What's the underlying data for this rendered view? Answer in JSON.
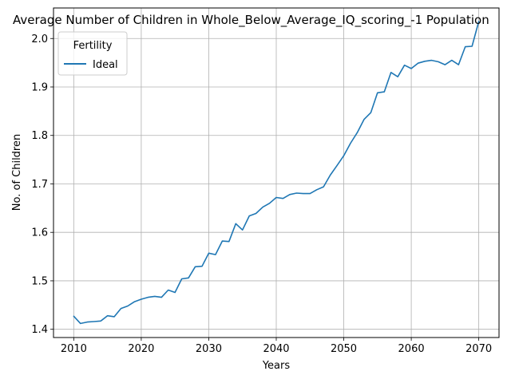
{
  "chart_data": {
    "type": "line",
    "title": "Average Number of Children in Whole_Below_Average_IQ_scoring_-1 Population",
    "xlabel": "Years",
    "ylabel": "No. of Children",
    "xlim": [
      2007,
      2073
    ],
    "ylim": [
      1.383,
      2.063
    ],
    "xticks": [
      2010,
      2020,
      2030,
      2040,
      2050,
      2060,
      2070
    ],
    "yticks": [
      1.4,
      1.5,
      1.6,
      1.7,
      1.8,
      1.9,
      2.0
    ],
    "ytick_labels": [
      "1.4",
      "1.5",
      "1.6",
      "1.7",
      "1.8",
      "1.9",
      "2.0"
    ],
    "grid": true,
    "legend": {
      "title": "Fertility",
      "placement": "top-left"
    },
    "series": [
      {
        "name": "Ideal",
        "color": "#1f77b4",
        "x": [
          2010,
          2011,
          2012,
          2013,
          2014,
          2015,
          2016,
          2017,
          2018,
          2019,
          2020,
          2021,
          2022,
          2023,
          2024,
          2025,
          2026,
          2027,
          2028,
          2029,
          2030,
          2031,
          2032,
          2033,
          2034,
          2035,
          2036,
          2037,
          2038,
          2039,
          2040,
          2041,
          2042,
          2043,
          2044,
          2045,
          2046,
          2047,
          2048,
          2049,
          2050,
          2051,
          2052,
          2053,
          2054,
          2055,
          2056,
          2057,
          2058,
          2059,
          2060,
          2061,
          2062,
          2063,
          2064,
          2065,
          2066,
          2067,
          2068,
          2069,
          2070
        ],
        "y": [
          1.427,
          1.412,
          1.415,
          1.416,
          1.417,
          1.428,
          1.426,
          1.443,
          1.448,
          1.457,
          1.462,
          1.466,
          1.468,
          1.466,
          1.481,
          1.476,
          1.504,
          1.506,
          1.529,
          1.53,
          1.557,
          1.554,
          1.582,
          1.581,
          1.618,
          1.605,
          1.634,
          1.639,
          1.652,
          1.66,
          1.672,
          1.67,
          1.678,
          1.681,
          1.68,
          1.68,
          1.688,
          1.694,
          1.718,
          1.738,
          1.758,
          1.784,
          1.806,
          1.833,
          1.847,
          1.888,
          1.89,
          1.93,
          1.921,
          1.945,
          1.938,
          1.949,
          1.953,
          1.955,
          1.952,
          1.946,
          1.955,
          1.946,
          1.983,
          1.984,
          2.035
        ]
      }
    ]
  }
}
